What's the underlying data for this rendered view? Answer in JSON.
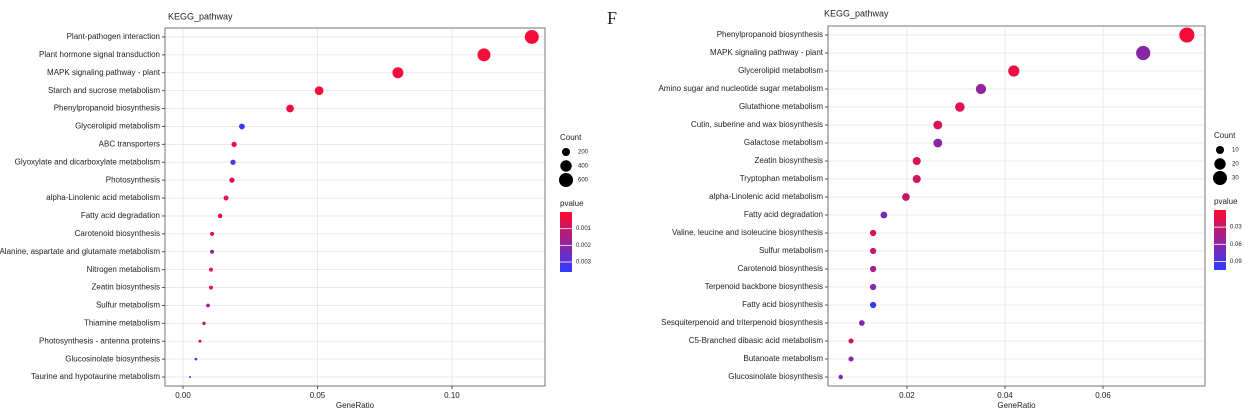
{
  "chart_data": [
    {
      "type": "bubble",
      "title": "KEGG_pathway",
      "xlabel": "GeneRatio",
      "categories": [
        "Plant-pathogen interaction",
        "Plant hormone signal transduction",
        "MAPK signaling pathway - plant",
        "Starch and sucrose metabolism",
        "Phenylpropanoid biosynthesis",
        "Glycerolipid metabolism",
        "ABC transporters",
        "Glyoxylate and dicarboxylate metabolism",
        "Photosynthesis",
        "alpha-Linolenic acid metabolism",
        "Fatty acid degradation",
        "Carotenoid biosynthesis",
        "Alanine, aspartate and glutamate metabolism",
        "Nitrogen metabolism",
        "Zeatin biosynthesis",
        "Sulfur metabolism",
        "Thiamine metabolism",
        "Photosynthesis - antenna proteins",
        "Glucosinolate biosynthesis",
        "Taurine and hypotaurine metabolism"
      ],
      "values": [
        0.1297,
        0.1119,
        0.0799,
        0.0506,
        0.0398,
        0.0219,
        0.019,
        0.0186,
        0.0182,
        0.016,
        0.0138,
        0.0108,
        0.0108,
        0.0104,
        0.0104,
        0.0093,
        0.0078,
        0.0063,
        0.0048,
        0.0026
      ],
      "sizes": [
        597,
        515,
        368,
        233,
        183,
        101,
        87,
        86,
        84,
        74,
        63,
        50,
        50,
        48,
        48,
        43,
        36,
        29,
        22,
        12
      ],
      "pvalues": [
        0.0002,
        0.0002,
        0.0002,
        0.0002,
        0.0003,
        0.0033,
        0.0003,
        0.0028,
        0.0003,
        0.0003,
        0.0003,
        0.0004,
        0.002,
        0.0003,
        0.0003,
        0.0017,
        0.0012,
        0.0006,
        0.0033,
        0.0035
      ],
      "xlim": [
        -0.0067,
        0.1346
      ],
      "xticks": [
        {
          "value": 0,
          "label": "0.00"
        },
        0.05,
        {
          "value": 0.1,
          "label": "0.10"
        }
      ],
      "grid": true,
      "size_legend": {
        "title": "Count",
        "values": [
          200,
          400,
          600
        ]
      },
      "color_legend": {
        "title": "pvalue",
        "lim": [
          0,
          0.0036
        ],
        "ticks": [
          0.001,
          0.002,
          0.003
        ],
        "colors": [
          "#ff0a2e",
          "#2f3bff"
        ]
      }
    },
    {
      "type": "bubble",
      "title": "KEGG_pathway",
      "xlabel": "GeneRatio",
      "panel_label": "F",
      "categories": [
        "Phenylpropanoid biosynthesis",
        "MAPK signaling pathway - plant",
        "Glycerolipid metabolism",
        "Amino sugar and nucleotide sugar metabolism",
        "Glutathione metabolism",
        "Cutin, suberine and wax biosynthesis",
        "Galactose metabolism",
        "Zeatin biosynthesis",
        "Tryptophan metabolism",
        "alpha-Linolenic acid metabolism",
        "Fatty acid degradation",
        "Valine, leucine and isoleucine biosynthesis",
        "Sulfur metabolism",
        "Carotenoid biosynthesis",
        "Terpenoid backbone biosynthesis",
        "Fatty acid biosynthesis",
        "Sesquiterpenoid and triterpenoid biosynthesis",
        "C5-Branched dibasic acid metabolism",
        "Butanoate metabolism",
        "Glucosinolate biosynthesis"
      ],
      "values": [
        0.0771,
        0.0682,
        0.0418,
        0.0351,
        0.0308,
        0.0263,
        0.0263,
        0.022,
        0.022,
        0.0198,
        0.0153,
        0.0131,
        0.0131,
        0.0131,
        0.0131,
        0.0131,
        0.0108,
        0.0086,
        0.0086,
        0.0065
      ],
      "sizes": [
        35,
        31,
        19,
        16,
        14,
        12,
        12,
        10,
        10,
        9,
        7,
        6,
        6,
        6,
        6,
        6,
        5,
        4,
        4,
        3
      ],
      "pvalues": [
        0.005,
        0.06,
        0.01,
        0.055,
        0.015,
        0.02,
        0.06,
        0.02,
        0.025,
        0.03,
        0.07,
        0.02,
        0.03,
        0.045,
        0.06,
        0.1,
        0.065,
        0.025,
        0.06,
        0.07
      ],
      "xlim": [
        0.0039,
        0.0808
      ],
      "xticks": [
        0.02,
        0.04,
        0.06
      ],
      "grid": true,
      "size_legend": {
        "title": "Count",
        "values": [
          10,
          20,
          30
        ]
      },
      "color_legend": {
        "title": "pvalue",
        "lim": [
          0,
          0.105
        ],
        "ticks": [
          0.03,
          0.06,
          0.09
        ],
        "colors": [
          "#ff0a2e",
          "#2f3bff"
        ]
      }
    }
  ]
}
